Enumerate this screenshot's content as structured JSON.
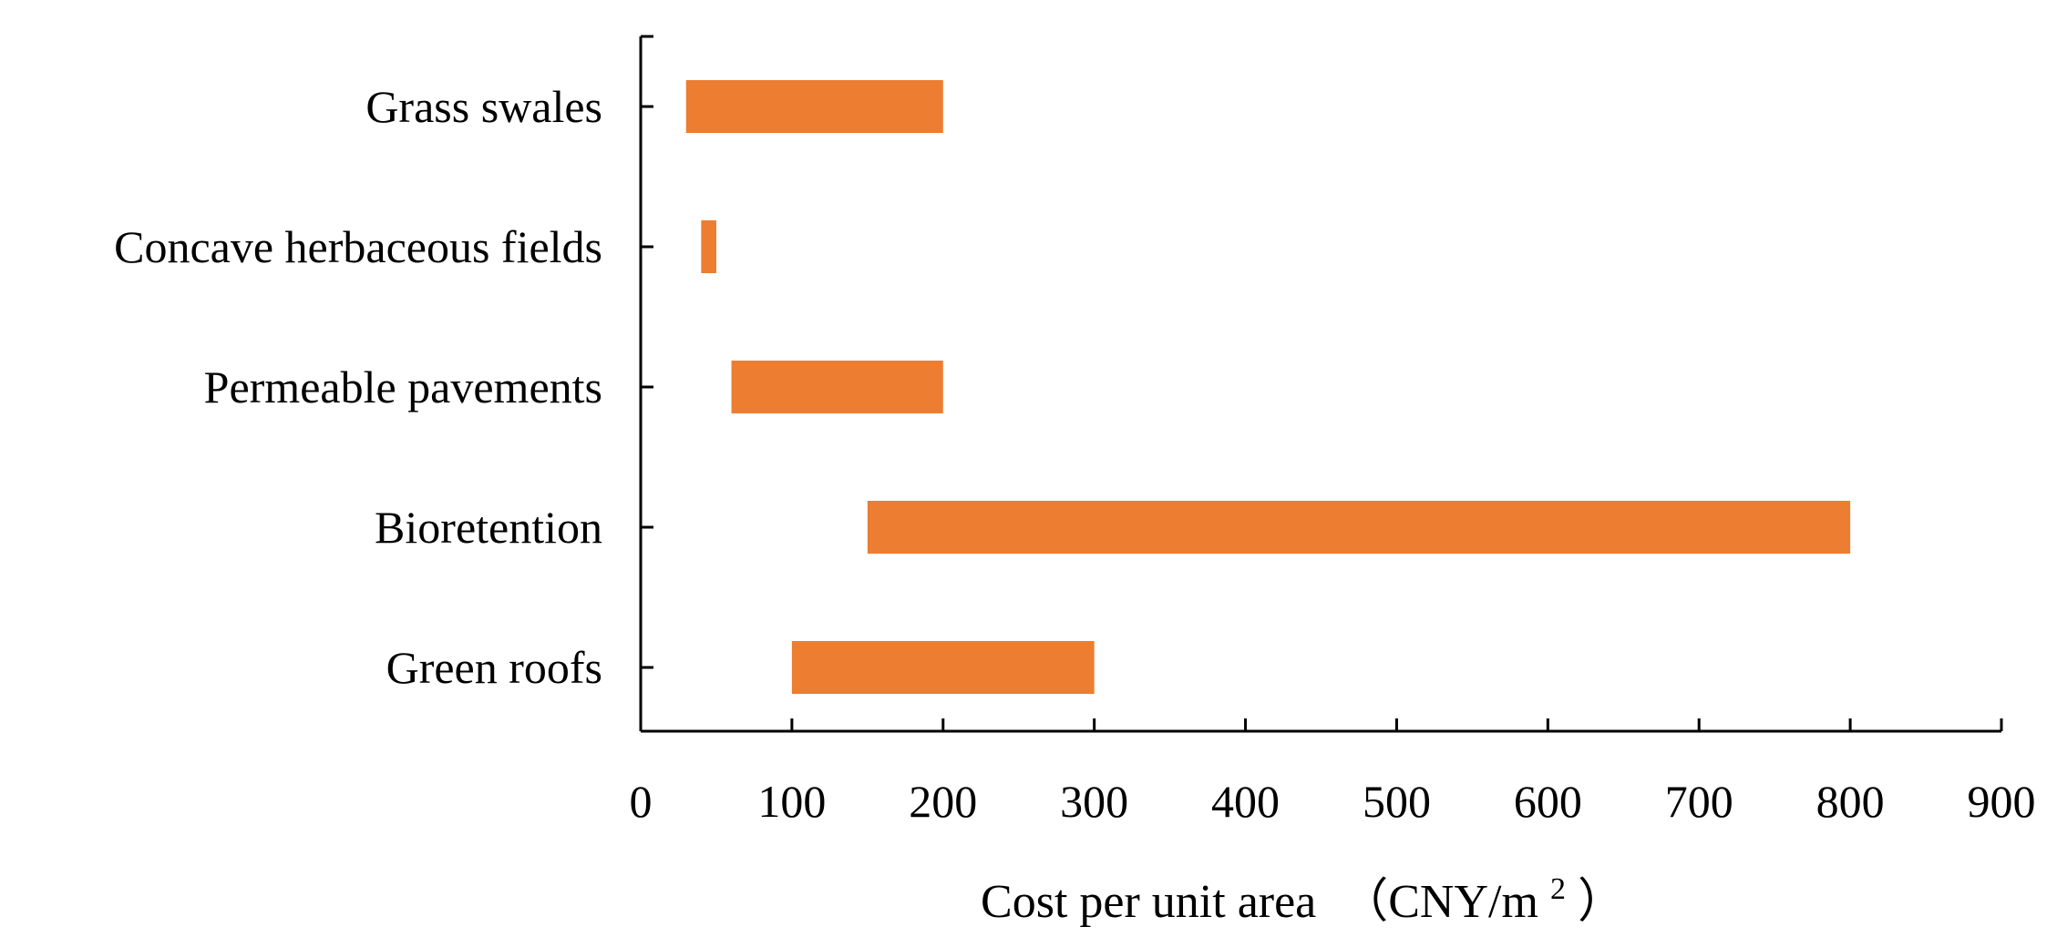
{
  "chart_data": {
    "type": "bar",
    "orientation": "horizontal",
    "subtype": "floating-range",
    "categories": [
      "Green roofs",
      "Bioretention",
      "Permeable pavements",
      "Concave herbaceous fields",
      "Grass swales"
    ],
    "ranges": [
      {
        "category": "Green roofs",
        "min": 100,
        "max": 300
      },
      {
        "category": "Bioretention",
        "min": 150,
        "max": 800
      },
      {
        "category": "Permeable pavements",
        "min": 60,
        "max": 200
      },
      {
        "category": "Concave herbaceous fields",
        "min": 40,
        "max": 50
      },
      {
        "category": "Grass swales",
        "min": 30,
        "max": 200
      }
    ],
    "x_ticks": [
      "0",
      "100",
      "200",
      "300",
      "400",
      "500",
      "600",
      "700",
      "800",
      "900"
    ],
    "xlim": [
      0,
      900
    ],
    "xlabel_main": "Cost per unit area",
    "xlabel_unit_open": "（CNY/m",
    "xlabel_unit_sup": "2",
    "xlabel_unit_close": "）",
    "ylabel": "",
    "title": "",
    "grid": false,
    "legend": "none",
    "bar_color": "#ED7D31"
  }
}
